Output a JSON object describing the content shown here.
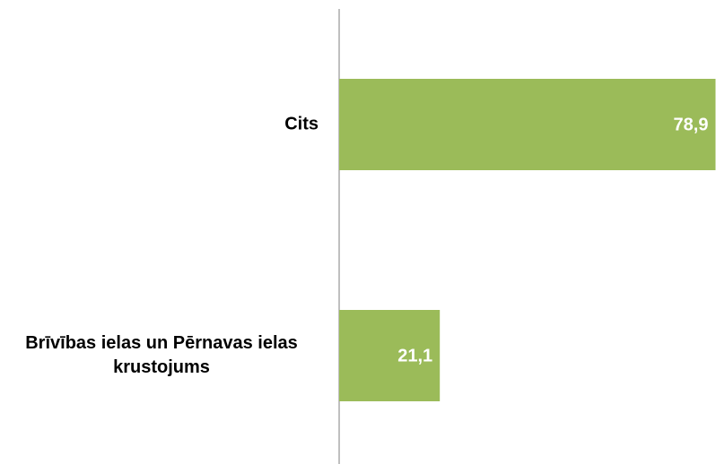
{
  "chart_data": {
    "type": "hbar",
    "categories": [
      "Cits",
      "Brīvības ielas un Pērnavas ielas krustojums"
    ],
    "values": [
      78.9,
      21.1
    ],
    "value_labels": [
      "78,9",
      "21,1"
    ],
    "color": "#9bbb59",
    "xlim": [
      0,
      79
    ]
  }
}
